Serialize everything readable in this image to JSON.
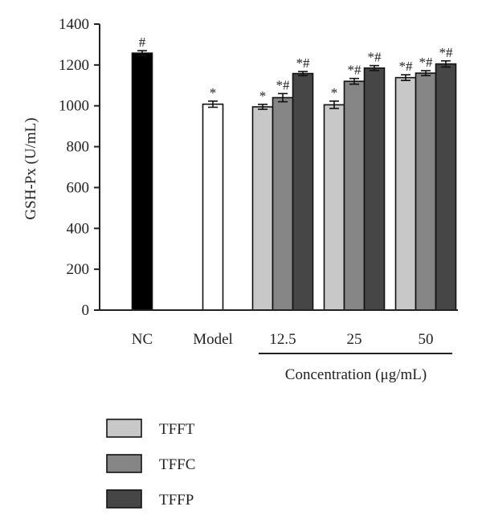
{
  "chart_data": {
    "type": "bar",
    "ylabel": "GSH-Px (U/mL)",
    "xlabel": "Concentration (μg/mL)",
    "ylim": [
      0,
      1400
    ],
    "yticks": [
      0,
      200,
      400,
      600,
      800,
      1000,
      1200,
      1400
    ],
    "grid": false,
    "legend_position": "bottom-left",
    "controls": [
      {
        "name": "NC",
        "value": 1258,
        "err": 12,
        "color": "#000000",
        "annotation": "#"
      },
      {
        "name": "Model",
        "value": 1008,
        "err": 15,
        "color": "#ffffff",
        "annotation": "*"
      }
    ],
    "categories": [
      "12.5",
      "25",
      "50"
    ],
    "series": [
      {
        "name": "TFFT",
        "color": "#c8c8c8",
        "values": [
          995,
          1005,
          1138
        ],
        "errors": [
          12,
          18,
          14
        ],
        "annotations": [
          "*",
          "*",
          "*#"
        ]
      },
      {
        "name": "TFFC",
        "color": "#858585",
        "values": [
          1040,
          1120,
          1160
        ],
        "errors": [
          20,
          14,
          12
        ],
        "annotations": [
          "*#",
          "*#",
          "*#"
        ]
      },
      {
        "name": "TFFP",
        "color": "#464646",
        "values": [
          1158,
          1185,
          1205
        ],
        "errors": [
          10,
          12,
          15
        ],
        "annotations": [
          "*#",
          "*#",
          "*#"
        ]
      }
    ]
  }
}
